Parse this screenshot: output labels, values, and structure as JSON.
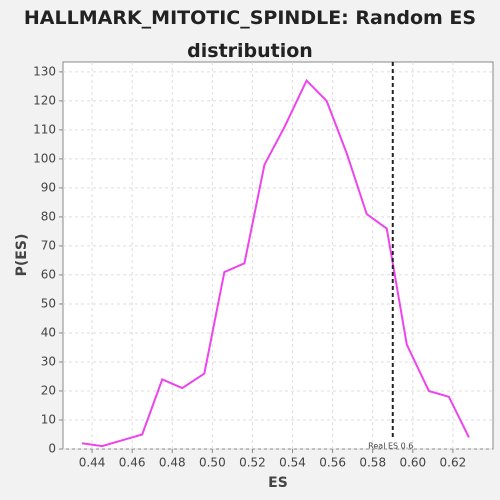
{
  "chart_data": {
    "type": "line",
    "title": "HALLMARK_MITOTIC_SPINDLE: Random ES distribution",
    "x_label": "ES",
    "y_label": "P(ES)",
    "x": [
      0.435,
      0.445,
      0.455,
      0.465,
      0.475,
      0.485,
      0.496,
      0.506,
      0.516,
      0.526,
      0.536,
      0.547,
      0.557,
      0.567,
      0.577,
      0.587,
      0.597,
      0.608,
      0.618,
      0.628
    ],
    "series": [
      {
        "name": "P(ES)",
        "color": "#ee44ee",
        "values": [
          2,
          1,
          3,
          5,
          24,
          21,
          26,
          61,
          64,
          98,
          111,
          127,
          120,
          102,
          81,
          76,
          36,
          20,
          18,
          4
        ]
      }
    ],
    "xlim": [
      0.4255,
      0.64
    ],
    "ylim": [
      0,
      133.4
    ],
    "xticks": [
      0.44,
      0.46,
      0.48,
      {
        "value": 0.5,
        "label": "0.50"
      },
      0.52,
      0.54,
      0.56,
      0.58,
      {
        "value": 0.6,
        "label": "0.60"
      },
      0.62
    ],
    "yticks": [
      0,
      10,
      20,
      30,
      40,
      50,
      60,
      70,
      80,
      90,
      100,
      110,
      120,
      130
    ],
    "grid": true,
    "annotation": {
      "label": "Real ES 0.6",
      "x": 0.59
    }
  }
}
